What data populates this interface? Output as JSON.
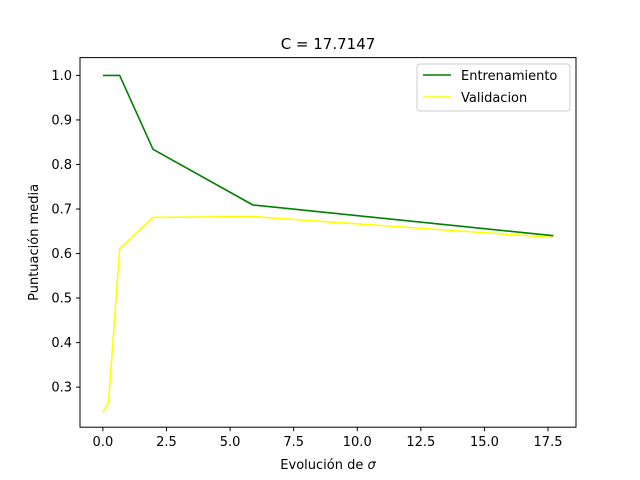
{
  "chart_data": {
    "type": "line",
    "title": "C = 17.7147",
    "xlabel_prefix": "Evolución de",
    "xlabel_symbol": "σ",
    "ylabel": "Puntuación media",
    "xlim": [
      -0.9,
      18.6
    ],
    "ylim": [
      0.21,
      1.04
    ],
    "xticks": [
      0.0,
      2.5,
      5.0,
      7.5,
      10.0,
      12.5,
      15.0,
      17.5
    ],
    "xtick_labels": [
      "0.0",
      "2.5",
      "5.0",
      "7.5",
      "10.0",
      "12.5",
      "15.0",
      "17.5"
    ],
    "yticks": [
      0.3,
      0.4,
      0.5,
      0.6,
      0.7,
      0.8,
      0.9,
      1.0
    ],
    "ytick_labels": [
      "0.3",
      "0.4",
      "0.5",
      "0.6",
      "0.7",
      "0.8",
      "0.9",
      "1.0"
    ],
    "grid": false,
    "legend_position": "top-right",
    "series": [
      {
        "name": "Entrenamiento",
        "color": "#008000",
        "x": [
          0.0,
          0.22,
          0.66,
          1.97,
          5.9,
          17.71
        ],
        "y": [
          1.0,
          1.0,
          1.0,
          0.834,
          0.709,
          0.64
        ]
      },
      {
        "name": "Validacion",
        "color": "#ffff00",
        "x": [
          0.0,
          0.22,
          0.66,
          1.97,
          5.9,
          17.71
        ],
        "y": [
          0.243,
          0.265,
          0.611,
          0.681,
          0.683,
          0.636
        ]
      }
    ]
  }
}
